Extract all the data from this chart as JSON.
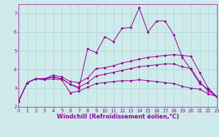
{
  "xlabel": "Windchill (Refroidissement éolien,°C)",
  "bg_color": "#ceeaea",
  "line_color": "#990099",
  "xlim": [
    0,
    23
  ],
  "ylim": [
    2,
    7.5
  ],
  "xticks": [
    0,
    1,
    2,
    3,
    4,
    5,
    6,
    7,
    8,
    9,
    10,
    11,
    12,
    13,
    14,
    15,
    16,
    17,
    18,
    19,
    20,
    21,
    22,
    23
  ],
  "yticks": [
    2,
    3,
    4,
    5,
    6,
    7
  ],
  "lines": [
    [
      0,
      2.3,
      1,
      3.3,
      2,
      3.5,
      3,
      3.5,
      4,
      3.6,
      5,
      3.5,
      6,
      3.2,
      7,
      3.0,
      8,
      5.1,
      9,
      4.9,
      10,
      5.75,
      11,
      5.5,
      12,
      6.2,
      13,
      6.25,
      14,
      7.3,
      15,
      6.0,
      16,
      6.6,
      17,
      6.6,
      18,
      5.85,
      19,
      4.65,
      20,
      4.0,
      21,
      3.25,
      22,
      2.95,
      23,
      2.55
    ],
    [
      0,
      2.3,
      1,
      3.3,
      2,
      3.5,
      3,
      3.5,
      4,
      3.7,
      5,
      3.6,
      6,
      3.35,
      7,
      3.3,
      8,
      3.55,
      9,
      4.05,
      10,
      4.1,
      11,
      4.2,
      12,
      4.35,
      13,
      4.45,
      14,
      4.55,
      15,
      4.65,
      16,
      4.7,
      17,
      4.75,
      18,
      4.8,
      19,
      4.75,
      20,
      4.7,
      21,
      3.85,
      22,
      3.0,
      23,
      2.55
    ],
    [
      0,
      2.3,
      1,
      3.3,
      2,
      3.5,
      3,
      3.5,
      4,
      3.6,
      5,
      3.5,
      6,
      3.2,
      7,
      3.05,
      8,
      3.3,
      9,
      3.65,
      10,
      3.75,
      11,
      3.85,
      12,
      3.95,
      13,
      4.05,
      14,
      4.15,
      15,
      4.2,
      16,
      4.25,
      17,
      4.3,
      18,
      4.3,
      19,
      4.15,
      20,
      4.05,
      21,
      3.35,
      22,
      2.85,
      23,
      2.55
    ],
    [
      0,
      2.3,
      1,
      3.3,
      2,
      3.5,
      3,
      3.45,
      4,
      3.5,
      5,
      3.45,
      6,
      2.75,
      7,
      2.85,
      8,
      3.05,
      9,
      3.25,
      10,
      3.3,
      11,
      3.35,
      12,
      3.4,
      13,
      3.4,
      14,
      3.45,
      15,
      3.4,
      16,
      3.35,
      17,
      3.3,
      18,
      3.25,
      19,
      3.1,
      20,
      3.0,
      21,
      2.95,
      22,
      2.7,
      23,
      2.55
    ]
  ],
  "grid_color": "#aed4d4",
  "tick_label_fontsize": 5.0,
  "xlabel_fontsize": 6.0,
  "marker": "D",
  "marker_size": 1.8,
  "linewidth": 0.75
}
